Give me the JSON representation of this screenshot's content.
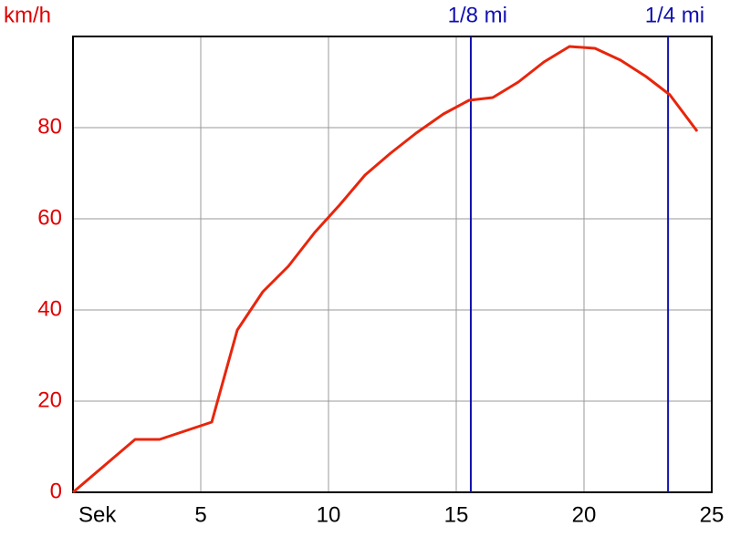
{
  "chart_data": {
    "type": "line",
    "y_label": "km/h",
    "x_label": "Sek",
    "x": [
      0,
      2.43,
      3.39,
      5.43,
      6.43,
      7.43,
      8.43,
      9.46,
      10.43,
      11.43,
      12.43,
      13.43,
      14.5,
      15.5,
      16.43,
      17.43,
      18.43,
      19.43,
      20.43,
      21.43,
      22.43,
      23.36,
      24.43
    ],
    "series": [
      {
        "color": "#e8250c",
        "values": [
          0,
          11.6,
          11.6,
          15.4,
          35.6,
          44,
          49.6,
          57,
          63,
          69.6,
          74.4,
          78.8,
          83,
          86,
          86.6,
          90,
          94.4,
          97.8,
          97.4,
          94.8,
          91.2,
          87.2,
          79.2
        ]
      }
    ],
    "xlim": [
      0,
      25
    ],
    "ylim": [
      0,
      100
    ],
    "xticks": [
      5,
      10,
      15,
      20,
      25
    ],
    "yticks": [
      0,
      20,
      40,
      60,
      80
    ],
    "grid": true,
    "markers": [
      {
        "x": 15.57,
        "label": "1/8 mi",
        "color": "#1010b0"
      },
      {
        "x": 23.29,
        "label": "1/4 mi",
        "color": "#1010b0"
      }
    ]
  }
}
